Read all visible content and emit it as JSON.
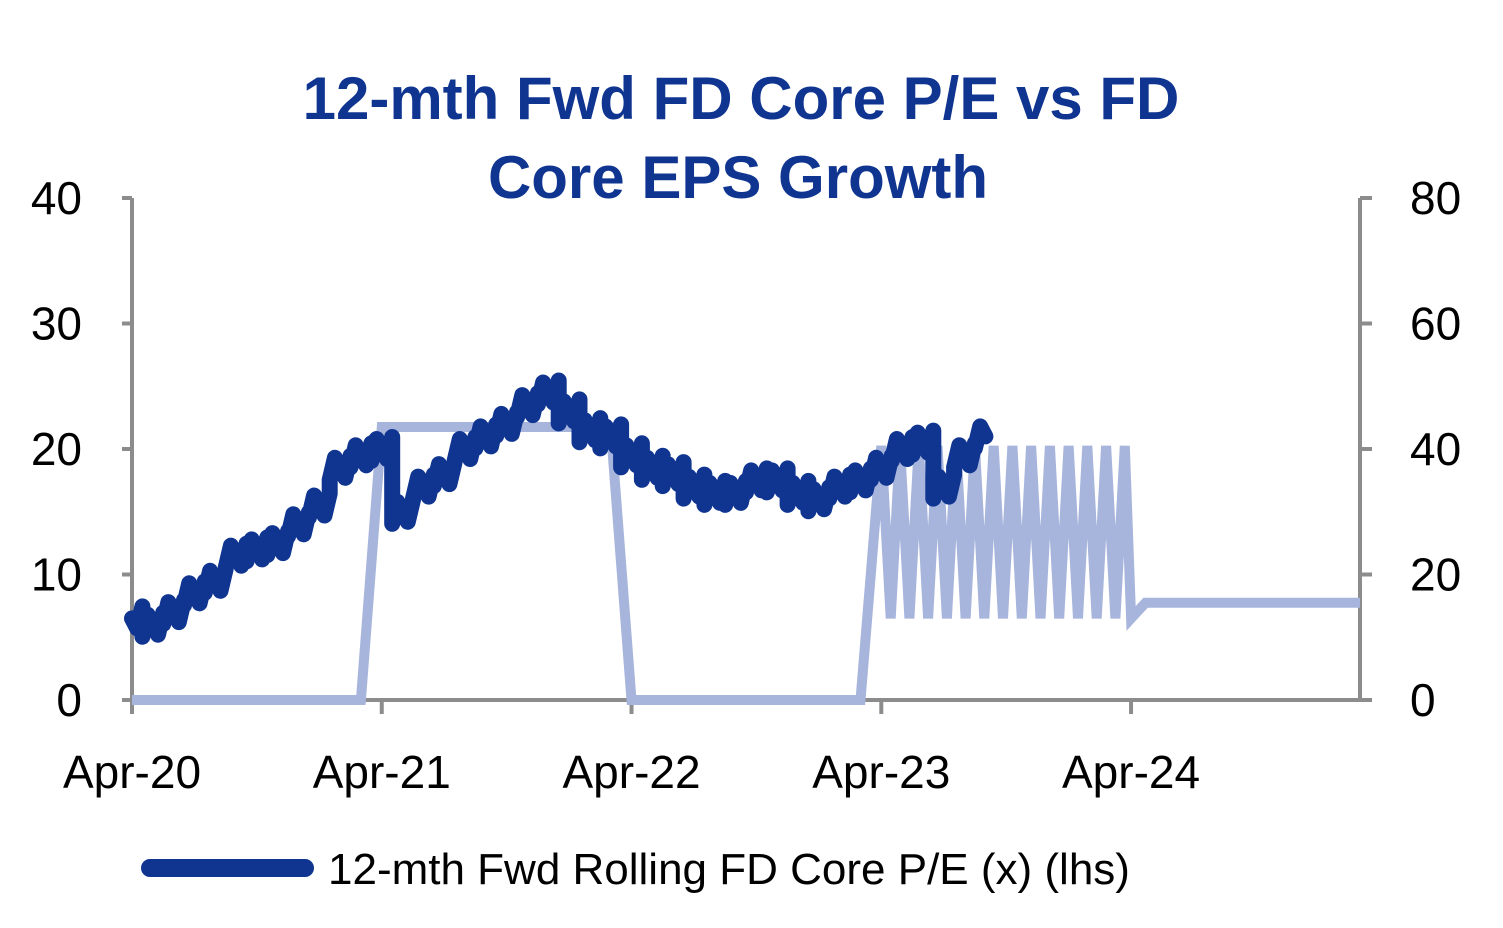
{
  "chart_data": {
    "type": "line",
    "title_lines": [
      "12-mth Fwd FD Core P/E vs FD",
      "Core EPS Growth"
    ],
    "x_ticks": [
      "Apr-20",
      "Apr-21",
      "Apr-22",
      "Apr-23",
      "Apr-24"
    ],
    "x_range_months": [
      0,
      59
    ],
    "y_left": {
      "ticks": [
        "0",
        "10",
        "20",
        "30",
        "40"
      ],
      "range": [
        0,
        40
      ]
    },
    "y_right": {
      "ticks": [
        "0",
        "20",
        "40",
        "60",
        "80"
      ],
      "range": [
        0,
        80
      ]
    },
    "grid": false,
    "legend_position": "bottom",
    "series": [
      {
        "name": "12-mth Fwd Rolling FD Core P/E (x) (lhs)",
        "axis": "left",
        "color": "#0f3591",
        "style": "jagged",
        "points": [
          [
            0,
            6.5
          ],
          [
            1,
            6.0
          ],
          [
            2,
            7.0
          ],
          [
            3,
            8.5
          ],
          [
            4,
            9.5
          ],
          [
            5,
            11.5
          ],
          [
            6,
            12.0
          ],
          [
            7,
            12.5
          ],
          [
            8,
            14.0
          ],
          [
            9,
            15.5
          ],
          [
            10,
            18.5
          ],
          [
            11,
            19.5
          ],
          [
            12,
            20.0
          ],
          [
            13,
            15.0
          ],
          [
            14,
            17.0
          ],
          [
            15,
            18.0
          ],
          [
            16,
            20.0
          ],
          [
            17,
            21.0
          ],
          [
            18,
            22.0
          ],
          [
            19,
            23.5
          ],
          [
            20,
            24.5
          ],
          [
            21,
            23.0
          ],
          [
            22,
            21.5
          ],
          [
            23,
            21.0
          ],
          [
            24,
            19.5
          ],
          [
            25,
            18.5
          ],
          [
            26,
            18.0
          ],
          [
            27,
            17.0
          ],
          [
            28,
            16.5
          ],
          [
            29,
            16.5
          ],
          [
            30,
            17.5
          ],
          [
            31,
            17.5
          ],
          [
            32,
            16.5
          ],
          [
            33,
            16.0
          ],
          [
            34,
            17.0
          ],
          [
            35,
            17.5
          ],
          [
            36,
            18.5
          ],
          [
            37,
            20.0
          ],
          [
            38,
            20.5
          ],
          [
            39,
            17.0
          ],
          [
            40,
            19.5
          ],
          [
            41,
            21.0
          ]
        ]
      },
      {
        "name": "FD Core EPS Growth",
        "axis": "right",
        "color": "#a7b4dc",
        "style": "line",
        "points": [
          [
            0,
            0
          ],
          [
            11,
            0
          ],
          [
            12,
            43.5
          ],
          [
            23,
            43.5
          ],
          [
            24,
            0
          ],
          [
            35,
            0
          ],
          [
            36,
            40.5
          ],
          [
            36.45,
            13
          ],
          [
            36.9,
            40.5
          ],
          [
            37.35,
            13
          ],
          [
            37.8,
            40.5
          ],
          [
            38.25,
            13
          ],
          [
            38.7,
            40.5
          ],
          [
            39.15,
            13
          ],
          [
            39.6,
            40.5
          ],
          [
            40.05,
            13
          ],
          [
            40.5,
            40.5
          ],
          [
            40.95,
            13
          ],
          [
            41.4,
            40.5
          ],
          [
            41.85,
            13
          ],
          [
            42.3,
            40.5
          ],
          [
            42.75,
            13
          ],
          [
            43.2,
            40.5
          ],
          [
            43.65,
            13
          ],
          [
            44.1,
            40.5
          ],
          [
            44.55,
            13
          ],
          [
            45.0,
            40.5
          ],
          [
            45.45,
            13
          ],
          [
            45.9,
            40.5
          ],
          [
            46.35,
            13
          ],
          [
            46.8,
            40.5
          ],
          [
            47.25,
            13
          ],
          [
            47.7,
            40.5
          ],
          [
            48,
            13
          ],
          [
            48.7,
            15.5
          ],
          [
            59,
            15.5
          ]
        ]
      }
    ]
  }
}
